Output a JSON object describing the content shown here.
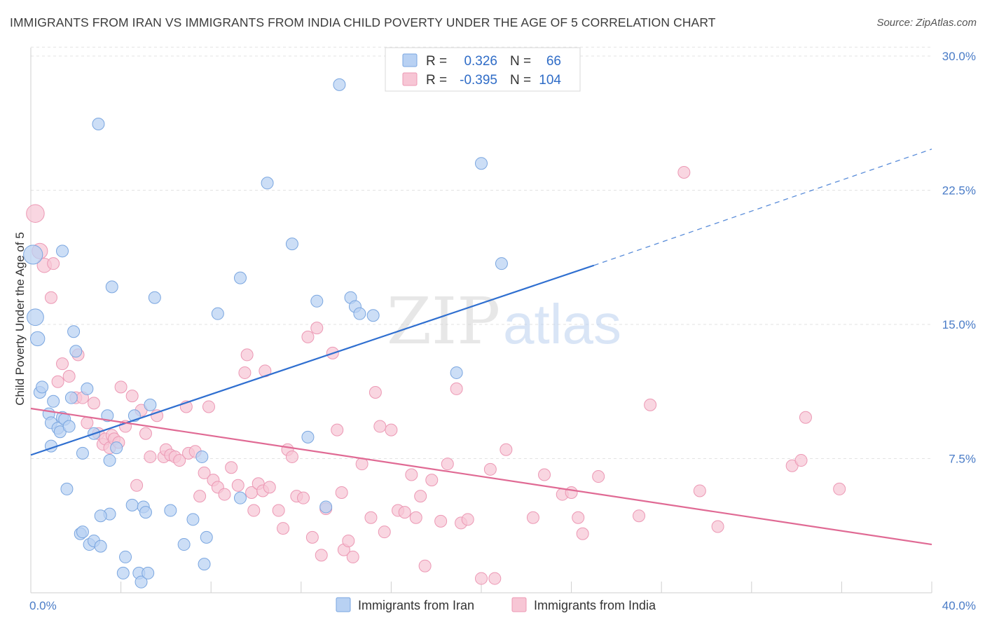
{
  "title": "IMMIGRANTS FROM IRAN VS IMMIGRANTS FROM INDIA CHILD POVERTY UNDER THE AGE OF 5 CORRELATION CHART",
  "source": "Source: ZipAtlas.com",
  "watermark": {
    "zip": "ZIP",
    "atlas": "atlas"
  },
  "colors": {
    "iran_fill": "#b8d1f3",
    "iran_stroke": "#7aa6e0",
    "iran_line": "#2f6fd0",
    "india_fill": "#f7c6d5",
    "india_stroke": "#ec98b4",
    "india_line": "#e06a94",
    "tick": "#4a7cc7",
    "grid": "#e3e3e3"
  },
  "legend": {
    "rows": [
      {
        "r_label": "R =",
        "r_value": "0.326",
        "n_label": "N =",
        "n_value": "66"
      },
      {
        "r_label": "R =",
        "r_value": "-0.395",
        "n_label": "N =",
        "n_value": "104"
      }
    ]
  },
  "chart_data": {
    "type": "scatter",
    "title": "IMMIGRANTS FROM IRAN VS IMMIGRANTS FROM INDIA CHILD POVERTY UNDER THE AGE OF 5 CORRELATION CHART",
    "xlabel": "",
    "ylabel": "Child Poverty Under the Age of 5",
    "xlim": [
      0,
      40
    ],
    "ylim": [
      0,
      30
    ],
    "x_tick_labels": [
      "0.0%",
      "40.0%"
    ],
    "y_ticks": [
      7.5,
      15.0,
      22.5,
      30.0
    ],
    "y_tick_labels": [
      "7.5%",
      "15.0%",
      "22.5%",
      "30.0%"
    ],
    "grid": true,
    "legend_position": "top-center",
    "series": [
      {
        "name": "Immigrants from Iran",
        "r": 0.326,
        "n": 66,
        "trend": {
          "x0": 0,
          "y0": 7.7,
          "x1": 25,
          "y1": 18.3,
          "dash_to_x": 40,
          "dash_to_y": 24.8
        },
        "points": [
          [
            0.1,
            18.9,
            1.6
          ],
          [
            0.2,
            15.4,
            1.4
          ],
          [
            0.3,
            14.2,
            1.2
          ],
          [
            0.4,
            11.2,
            1.0
          ],
          [
            0.5,
            11.5,
            1.0
          ],
          [
            0.8,
            10.0,
            1.0
          ],
          [
            0.9,
            9.5,
            1.0
          ],
          [
            1.0,
            10.7,
            1.0
          ],
          [
            1.2,
            9.2,
            1.0
          ],
          [
            1.3,
            9.0,
            1.0
          ],
          [
            0.9,
            8.2,
            1.0
          ],
          [
            1.4,
            9.8,
            1.0
          ],
          [
            1.5,
            9.7,
            1.0
          ],
          [
            1.7,
            9.3,
            1.0
          ],
          [
            1.4,
            19.1,
            1.0
          ],
          [
            1.9,
            14.6,
            1.0
          ],
          [
            2.0,
            13.5,
            1.0
          ],
          [
            1.8,
            10.9,
            1.0
          ],
          [
            2.5,
            11.4,
            1.0
          ],
          [
            2.3,
            7.8,
            1.0
          ],
          [
            2.8,
            8.9,
            1.0
          ],
          [
            3.0,
            26.2,
            1.0
          ],
          [
            3.4,
            9.9,
            1.0
          ],
          [
            3.5,
            7.4,
            1.0
          ],
          [
            3.6,
            17.1,
            1.0
          ],
          [
            3.8,
            8.1,
            1.0
          ],
          [
            3.5,
            4.4,
            1.0
          ],
          [
            3.1,
            4.3,
            1.0
          ],
          [
            2.2,
            3.3,
            1.0
          ],
          [
            2.3,
            3.4,
            1.0
          ],
          [
            2.6,
            2.7,
            1.0
          ],
          [
            2.8,
            2.9,
            1.0
          ],
          [
            3.1,
            2.6,
            1.0
          ],
          [
            1.6,
            5.8,
            1.0
          ],
          [
            4.2,
            2.0,
            1.0
          ],
          [
            4.5,
            4.9,
            1.0
          ],
          [
            4.1,
            1.1,
            1.0
          ],
          [
            4.8,
            1.1,
            1.0
          ],
          [
            4.9,
            0.6,
            1.0
          ],
          [
            5.2,
            1.1,
            1.0
          ],
          [
            4.6,
            9.9,
            1.0
          ],
          [
            5.3,
            10.5,
            1.0
          ],
          [
            5.5,
            16.5,
            1.0
          ],
          [
            5.0,
            4.8,
            1.0
          ],
          [
            5.1,
            4.5,
            1.0
          ],
          [
            6.2,
            4.6,
            1.0
          ],
          [
            6.8,
            2.7,
            1.0
          ],
          [
            7.2,
            4.1,
            1.0
          ],
          [
            7.7,
            1.6,
            1.0
          ],
          [
            7.8,
            3.1,
            1.0
          ],
          [
            7.6,
            7.6,
            1.0
          ],
          [
            8.3,
            15.6,
            1.0
          ],
          [
            9.3,
            17.6,
            1.0
          ],
          [
            9.3,
            5.3,
            1.0
          ],
          [
            10.5,
            22.9,
            1.0
          ],
          [
            11.6,
            19.5,
            1.0
          ],
          [
            12.3,
            8.7,
            1.0
          ],
          [
            12.7,
            16.3,
            1.0
          ],
          [
            13.1,
            4.8,
            1.0
          ],
          [
            13.7,
            28.4,
            1.0
          ],
          [
            14.2,
            16.5,
            1.0
          ],
          [
            14.4,
            16.0,
            1.0
          ],
          [
            14.6,
            15.6,
            1.0
          ],
          [
            15.2,
            15.5,
            1.0
          ],
          [
            18.9,
            12.3,
            1.0
          ],
          [
            20.0,
            24.0,
            1.0
          ],
          [
            20.9,
            18.4,
            1.0
          ]
        ]
      },
      {
        "name": "Immigrants from India",
        "r": -0.395,
        "n": 104,
        "trend": {
          "x0": 0,
          "y0": 10.3,
          "x1": 40,
          "y1": 2.7
        },
        "points": [
          [
            0.2,
            21.2,
            1.5
          ],
          [
            0.4,
            19.1,
            1.3
          ],
          [
            0.6,
            18.3,
            1.2
          ],
          [
            0.9,
            16.5,
            1.0
          ],
          [
            1.0,
            18.4,
            1.0
          ],
          [
            1.2,
            11.8,
            1.0
          ],
          [
            1.4,
            12.8,
            1.0
          ],
          [
            1.7,
            12.1,
            1.0
          ],
          [
            2.0,
            10.9,
            1.0
          ],
          [
            2.1,
            13.3,
            1.0
          ],
          [
            2.3,
            10.9,
            1.0
          ],
          [
            2.5,
            9.5,
            1.0
          ],
          [
            2.8,
            10.6,
            1.0
          ],
          [
            3.0,
            8.9,
            1.0
          ],
          [
            3.2,
            8.3,
            1.0
          ],
          [
            3.3,
            8.6,
            1.0
          ],
          [
            3.5,
            8.1,
            1.0
          ],
          [
            3.6,
            8.8,
            1.0
          ],
          [
            3.7,
            8.6,
            1.0
          ],
          [
            3.9,
            8.4,
            1.0
          ],
          [
            4.0,
            11.5,
            1.0
          ],
          [
            4.2,
            9.3,
            1.0
          ],
          [
            4.5,
            11.0,
            1.0
          ],
          [
            4.7,
            6.0,
            1.0
          ],
          [
            4.9,
            10.2,
            1.0
          ],
          [
            5.1,
            8.9,
            1.0
          ],
          [
            5.3,
            7.6,
            1.0
          ],
          [
            5.6,
            9.9,
            1.0
          ],
          [
            5.9,
            7.6,
            1.0
          ],
          [
            6.0,
            8.0,
            1.0
          ],
          [
            6.2,
            7.7,
            1.0
          ],
          [
            6.4,
            7.6,
            1.0
          ],
          [
            6.6,
            7.4,
            1.0
          ],
          [
            6.9,
            10.4,
            1.0
          ],
          [
            7.0,
            7.8,
            1.0
          ],
          [
            7.3,
            7.9,
            1.0
          ],
          [
            7.5,
            5.4,
            1.0
          ],
          [
            7.7,
            6.7,
            1.0
          ],
          [
            7.9,
            10.4,
            1.0
          ],
          [
            8.1,
            6.3,
            1.0
          ],
          [
            8.3,
            5.9,
            1.0
          ],
          [
            8.6,
            5.5,
            1.0
          ],
          [
            8.9,
            7.0,
            1.0
          ],
          [
            9.2,
            6.0,
            1.0
          ],
          [
            9.5,
            12.3,
            1.0
          ],
          [
            9.6,
            13.3,
            1.0
          ],
          [
            9.8,
            5.6,
            1.0
          ],
          [
            9.9,
            4.6,
            1.0
          ],
          [
            10.1,
            6.1,
            1.0
          ],
          [
            10.3,
            5.7,
            1.0
          ],
          [
            10.4,
            12.4,
            1.0
          ],
          [
            10.6,
            5.9,
            1.0
          ],
          [
            11.0,
            4.6,
            1.0
          ],
          [
            11.2,
            3.6,
            1.0
          ],
          [
            11.4,
            8.0,
            1.0
          ],
          [
            11.6,
            7.6,
            1.0
          ],
          [
            11.8,
            5.4,
            1.0
          ],
          [
            12.1,
            5.3,
            1.0
          ],
          [
            12.3,
            14.3,
            1.0
          ],
          [
            12.5,
            3.1,
            1.0
          ],
          [
            12.7,
            14.8,
            1.0
          ],
          [
            12.9,
            2.1,
            1.0
          ],
          [
            13.1,
            4.7,
            1.0
          ],
          [
            13.4,
            13.4,
            1.0
          ],
          [
            13.6,
            9.1,
            1.0
          ],
          [
            13.8,
            5.6,
            1.0
          ],
          [
            13.9,
            2.4,
            1.0
          ],
          [
            14.1,
            2.9,
            1.0
          ],
          [
            14.3,
            2.0,
            1.0
          ],
          [
            14.7,
            7.2,
            1.0
          ],
          [
            15.1,
            4.2,
            1.0
          ],
          [
            15.3,
            11.2,
            1.0
          ],
          [
            15.5,
            9.3,
            1.0
          ],
          [
            15.7,
            3.4,
            1.0
          ],
          [
            16.0,
            9.1,
            1.0
          ],
          [
            16.3,
            4.6,
            1.0
          ],
          [
            16.6,
            4.5,
            1.0
          ],
          [
            16.9,
            6.6,
            1.0
          ],
          [
            17.1,
            4.2,
            1.0
          ],
          [
            17.3,
            5.4,
            1.0
          ],
          [
            17.5,
            1.5,
            1.0
          ],
          [
            17.8,
            6.3,
            1.0
          ],
          [
            18.2,
            4.0,
            1.0
          ],
          [
            18.5,
            7.2,
            1.0
          ],
          [
            18.9,
            11.4,
            1.0
          ],
          [
            19.1,
            3.9,
            1.0
          ],
          [
            19.4,
            4.1,
            1.0
          ],
          [
            20.0,
            0.8,
            1.0
          ],
          [
            20.4,
            6.9,
            1.0
          ],
          [
            20.6,
            0.8,
            1.0
          ],
          [
            21.1,
            8.0,
            1.0
          ],
          [
            22.3,
            4.2,
            1.0
          ],
          [
            22.8,
            6.6,
            1.0
          ],
          [
            23.6,
            5.5,
            1.0
          ],
          [
            24.0,
            5.6,
            1.0
          ],
          [
            24.3,
            4.2,
            1.0
          ],
          [
            24.5,
            3.3,
            1.0
          ],
          [
            25.2,
            6.5,
            1.0
          ],
          [
            27.0,
            4.3,
            1.0
          ],
          [
            27.5,
            10.5,
            1.0
          ],
          [
            29.0,
            23.5,
            1.0
          ],
          [
            29.7,
            5.7,
            1.0
          ],
          [
            30.5,
            3.7,
            1.0
          ],
          [
            33.8,
            7.1,
            1.0
          ],
          [
            34.2,
            7.4,
            1.0
          ],
          [
            34.4,
            9.8,
            1.0
          ],
          [
            35.9,
            5.8,
            1.0
          ]
        ]
      }
    ]
  }
}
